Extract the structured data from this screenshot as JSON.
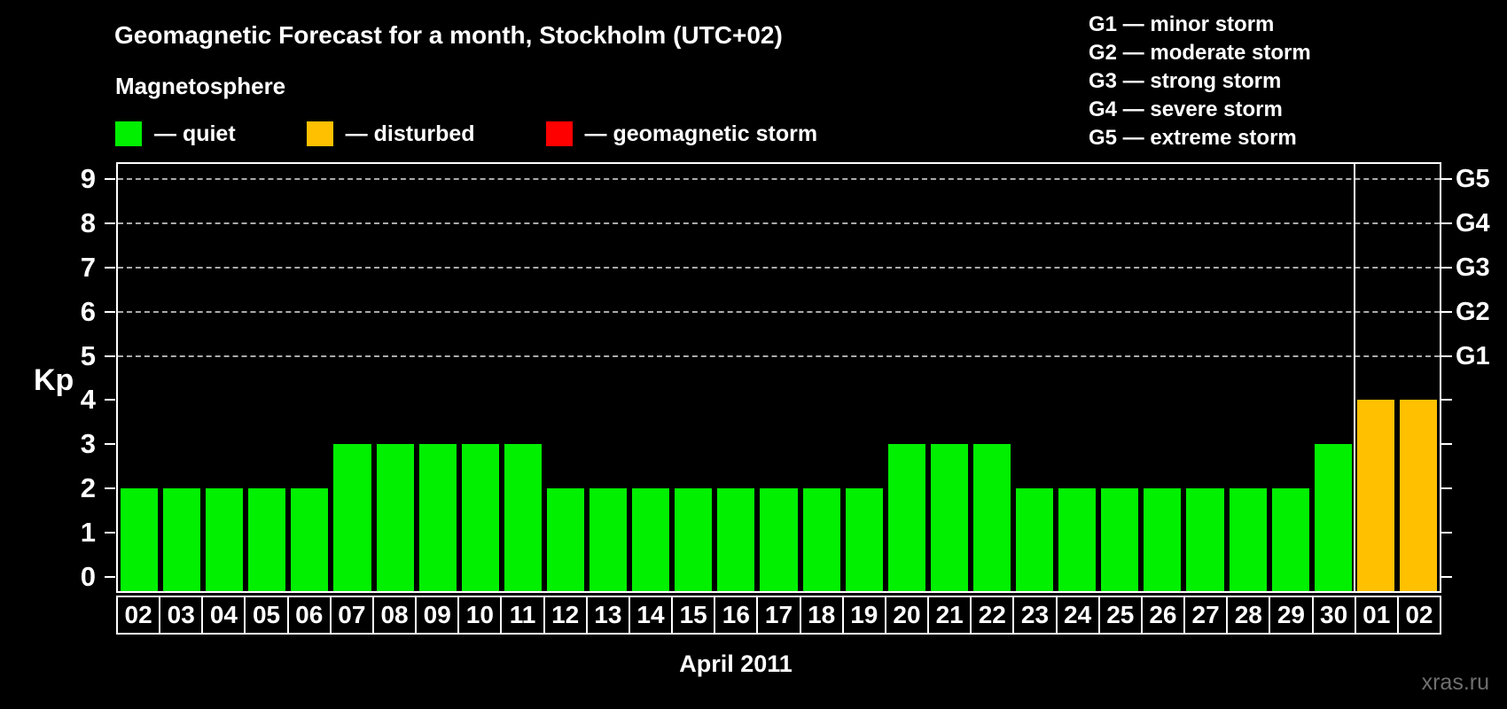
{
  "header": {
    "legend_title": "Magnetosphere",
    "legend": [
      {
        "key": "quiet",
        "label": "— quiet",
        "color": "#00f000"
      },
      {
        "key": "disturbed",
        "label": "— disturbed",
        "color": "#ffc000"
      },
      {
        "key": "storm",
        "label": "— geomagnetic storm",
        "color": "#ff0000"
      }
    ],
    "g_scale_legend": [
      "G1 — minor storm",
      "G2 — moderate storm",
      "G3 — strong storm",
      "G4 — severe storm",
      "G5 — extreme storm"
    ]
  },
  "chart_data": {
    "type": "bar",
    "title": "Geomagnetic Forecast for a month, Stockholm (UTC+02)",
    "ylabel": "Kp",
    "xlabel": "April 2011",
    "ylim": [
      0,
      9
    ],
    "yticks": [
      0,
      1,
      2,
      3,
      4,
      5,
      6,
      7,
      8,
      9
    ],
    "right_axis": [
      {
        "label": "G1",
        "kp": 5
      },
      {
        "label": "G2",
        "kp": 6
      },
      {
        "label": "G3",
        "kp": 7
      },
      {
        "label": "G4",
        "kp": 8
      },
      {
        "label": "G5",
        "kp": 9
      }
    ],
    "grid": "dashed horizontal lines at G-storm levels only",
    "legend_position": "top-left",
    "categories": [
      "02",
      "03",
      "04",
      "05",
      "06",
      "07",
      "08",
      "09",
      "10",
      "11",
      "12",
      "13",
      "14",
      "15",
      "16",
      "17",
      "18",
      "19",
      "20",
      "21",
      "22",
      "23",
      "24",
      "25",
      "26",
      "27",
      "28",
      "29",
      "30",
      "01",
      "02"
    ],
    "values": [
      2,
      2,
      2,
      2,
      2,
      3,
      3,
      3,
      3,
      3,
      2,
      2,
      2,
      2,
      2,
      2,
      2,
      2,
      3,
      3,
      3,
      2,
      2,
      2,
      2,
      2,
      2,
      2,
      3,
      4,
      4
    ],
    "statuses": [
      "quiet",
      "quiet",
      "quiet",
      "quiet",
      "quiet",
      "quiet",
      "quiet",
      "quiet",
      "quiet",
      "quiet",
      "quiet",
      "quiet",
      "quiet",
      "quiet",
      "quiet",
      "quiet",
      "quiet",
      "quiet",
      "quiet",
      "quiet",
      "quiet",
      "quiet",
      "quiet",
      "quiet",
      "quiet",
      "quiet",
      "quiet",
      "quiet",
      "quiet",
      "disturbed",
      "disturbed"
    ],
    "separator_after_index": 28
  },
  "footer": {
    "watermark": "xras.ru"
  }
}
